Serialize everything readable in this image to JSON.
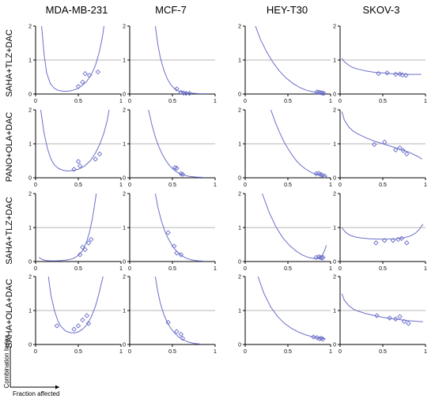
{
  "figure": {
    "columns": [
      "MDA-MB-231",
      "MCF-7",
      "HEY-T30",
      "SKOV-3"
    ],
    "rows": [
      "SAHA+TLZ+DAC",
      "PANO+OLA+DAC",
      "SAHA+TLZ+DAC",
      "SAHA+OLA+DAC"
    ],
    "axis_legend": {
      "ylabel": "Combination Index",
      "xlabel": "Fraction affected"
    }
  },
  "style": {
    "curve_color": "#6b6fc9",
    "point_color": "#6b6fc9",
    "refline_color": "#b5b5b5",
    "axis_color": "#000000"
  },
  "chart_data": [
    {
      "type": "scatter",
      "row": 0,
      "col": 0,
      "xlim": [
        0,
        1
      ],
      "ylim": [
        0,
        2
      ],
      "xticks": [
        "0",
        "0.5",
        "1"
      ],
      "yticks": [
        "0",
        "1",
        "2"
      ],
      "ref_line": 1,
      "curve": {
        "x": [
          0.07,
          0.1,
          0.13,
          0.17,
          0.21,
          0.25,
          0.3,
          0.35,
          0.4,
          0.45,
          0.5,
          0.55,
          0.6,
          0.65,
          0.7,
          0.74,
          0.77,
          0.79,
          0.8
        ],
        "y": [
          2.0,
          1.15,
          0.62,
          0.32,
          0.19,
          0.12,
          0.09,
          0.08,
          0.09,
          0.12,
          0.17,
          0.26,
          0.38,
          0.56,
          0.84,
          1.18,
          1.52,
          1.8,
          2.0
        ]
      },
      "points": [
        {
          "x": 0.5,
          "y": 0.22
        },
        {
          "x": 0.55,
          "y": 0.35
        },
        {
          "x": 0.58,
          "y": 0.6
        },
        {
          "x": 0.63,
          "y": 0.55
        },
        {
          "x": 0.73,
          "y": 0.65
        }
      ]
    },
    {
      "type": "scatter",
      "row": 0,
      "col": 1,
      "xlim": [
        0,
        1
      ],
      "ylim": [
        0,
        2
      ],
      "xticks": [
        "0",
        "0.5",
        "1"
      ],
      "yticks": [
        "0",
        "1",
        "2"
      ],
      "ref_line": 1,
      "curve": {
        "x": [
          0.3,
          0.33,
          0.36,
          0.4,
          0.44,
          0.48,
          0.52,
          0.57,
          0.62,
          0.68,
          0.75,
          0.83,
          0.9
        ],
        "y": [
          2.0,
          1.45,
          1.05,
          0.7,
          0.45,
          0.28,
          0.17,
          0.09,
          0.05,
          0.03,
          0.02,
          0.01,
          0.01
        ]
      },
      "points": [
        {
          "x": 0.55,
          "y": 0.15
        },
        {
          "x": 0.6,
          "y": 0.05
        },
        {
          "x": 0.63,
          "y": 0.03
        },
        {
          "x": 0.66,
          "y": 0.02
        },
        {
          "x": 0.7,
          "y": 0.02
        }
      ]
    },
    {
      "type": "scatter",
      "row": 0,
      "col": 2,
      "xlim": [
        0,
        1
      ],
      "ylim": [
        0,
        2
      ],
      "xticks": [
        "0",
        "0.5",
        "1"
      ],
      "yticks": [
        "0",
        "1",
        "2"
      ],
      "ref_line": 1,
      "curve": {
        "x": [
          0.12,
          0.18,
          0.25,
          0.32,
          0.4,
          0.48,
          0.56,
          0.64,
          0.72,
          0.8,
          0.87,
          0.92
        ],
        "y": [
          2.0,
          1.6,
          1.25,
          0.95,
          0.68,
          0.47,
          0.31,
          0.19,
          0.11,
          0.06,
          0.03,
          0.02
        ]
      },
      "points": [
        {
          "x": 0.84,
          "y": 0.06
        },
        {
          "x": 0.86,
          "y": 0.05
        },
        {
          "x": 0.88,
          "y": 0.04
        },
        {
          "x": 0.9,
          "y": 0.03
        },
        {
          "x": 0.92,
          "y": 0.02
        }
      ]
    },
    {
      "type": "scatter",
      "row": 0,
      "col": 3,
      "xlim": [
        0,
        1
      ],
      "ylim": [
        0,
        2
      ],
      "xticks": [
        "0",
        "0.5",
        "1"
      ],
      "yticks": [
        "0",
        "1",
        "2"
      ],
      "ref_line": 1,
      "curve": {
        "x": [
          0.02,
          0.05,
          0.1,
          0.15,
          0.2,
          0.3,
          0.4,
          0.5,
          0.6,
          0.7,
          0.8,
          0.9,
          0.95
        ],
        "y": [
          1.05,
          0.95,
          0.85,
          0.78,
          0.74,
          0.68,
          0.64,
          0.62,
          0.6,
          0.59,
          0.58,
          0.58,
          0.58
        ]
      },
      "points": [
        {
          "x": 0.45,
          "y": 0.6
        },
        {
          "x": 0.55,
          "y": 0.62
        },
        {
          "x": 0.65,
          "y": 0.58
        },
        {
          "x": 0.7,
          "y": 0.59
        },
        {
          "x": 0.73,
          "y": 0.56
        },
        {
          "x": 0.77,
          "y": 0.55
        }
      ]
    },
    {
      "type": "scatter",
      "row": 1,
      "col": 0,
      "xlim": [
        0,
        1
      ],
      "ylim": [
        0,
        2
      ],
      "xticks": [
        "0",
        "0.5",
        "1"
      ],
      "yticks": [
        "0",
        "1",
        "2"
      ],
      "ref_line": 1,
      "curve": {
        "x": [
          0.06,
          0.1,
          0.14,
          0.18,
          0.22,
          0.27,
          0.32,
          0.37,
          0.43,
          0.5,
          0.57,
          0.64,
          0.7,
          0.75,
          0.8,
          0.84,
          0.86
        ],
        "y": [
          2.0,
          1.3,
          0.85,
          0.55,
          0.38,
          0.27,
          0.22,
          0.2,
          0.21,
          0.25,
          0.34,
          0.5,
          0.72,
          0.98,
          1.32,
          1.7,
          2.0
        ]
      },
      "points": [
        {
          "x": 0.45,
          "y": 0.25
        },
        {
          "x": 0.5,
          "y": 0.48
        },
        {
          "x": 0.52,
          "y": 0.35
        },
        {
          "x": 0.7,
          "y": 0.55
        },
        {
          "x": 0.75,
          "y": 0.7
        }
      ]
    },
    {
      "type": "scatter",
      "row": 1,
      "col": 1,
      "xlim": [
        0,
        1
      ],
      "ylim": [
        0,
        2
      ],
      "xticks": [
        "0",
        "0.5",
        "1"
      ],
      "yticks": [
        "0",
        "1",
        "2"
      ],
      "ref_line": 1,
      "curve": {
        "x": [
          0.22,
          0.26,
          0.3,
          0.34,
          0.38,
          0.42,
          0.46,
          0.5,
          0.55,
          0.6,
          0.65,
          0.7,
          0.78,
          0.88
        ],
        "y": [
          2.0,
          1.55,
          1.2,
          0.92,
          0.7,
          0.52,
          0.38,
          0.27,
          0.17,
          0.11,
          0.07,
          0.04,
          0.02,
          0.01
        ]
      },
      "points": [
        {
          "x": 0.53,
          "y": 0.3
        },
        {
          "x": 0.55,
          "y": 0.28
        },
        {
          "x": 0.6,
          "y": 0.12
        },
        {
          "x": 0.62,
          "y": 0.1
        }
      ]
    },
    {
      "type": "scatter",
      "row": 1,
      "col": 2,
      "xlim": [
        0,
        1
      ],
      "ylim": [
        0,
        2
      ],
      "xticks": [
        "0",
        "0.5",
        "1"
      ],
      "yticks": [
        "0",
        "1",
        "2"
      ],
      "ref_line": 1,
      "curve": {
        "x": [
          0.3,
          0.35,
          0.4,
          0.45,
          0.5,
          0.55,
          0.6,
          0.65,
          0.7,
          0.75,
          0.8,
          0.85,
          0.9,
          0.95
        ],
        "y": [
          2.0,
          1.65,
          1.35,
          1.08,
          0.86,
          0.67,
          0.5,
          0.37,
          0.27,
          0.19,
          0.13,
          0.09,
          0.06,
          0.04
        ]
      },
      "points": [
        {
          "x": 0.83,
          "y": 0.12
        },
        {
          "x": 0.86,
          "y": 0.13
        },
        {
          "x": 0.88,
          "y": 0.1
        },
        {
          "x": 0.9,
          "y": 0.08
        },
        {
          "x": 0.93,
          "y": 0.05
        }
      ]
    },
    {
      "type": "scatter",
      "row": 1,
      "col": 3,
      "xlim": [
        0,
        1
      ],
      "ylim": [
        0,
        2
      ],
      "xticks": [
        "0",
        "0.5",
        "1"
      ],
      "yticks": [
        "0",
        "1",
        "2"
      ],
      "ref_line": 1,
      "curve": {
        "x": [
          0.02,
          0.05,
          0.1,
          0.15,
          0.2,
          0.3,
          0.4,
          0.5,
          0.6,
          0.7,
          0.8,
          0.9,
          0.96
        ],
        "y": [
          1.95,
          1.7,
          1.5,
          1.38,
          1.3,
          1.18,
          1.08,
          1.0,
          0.92,
          0.84,
          0.76,
          0.64,
          0.55
        ]
      },
      "points": [
        {
          "x": 0.4,
          "y": 0.98
        },
        {
          "x": 0.52,
          "y": 1.05
        },
        {
          "x": 0.65,
          "y": 0.82
        },
        {
          "x": 0.7,
          "y": 0.88
        },
        {
          "x": 0.74,
          "y": 0.8
        },
        {
          "x": 0.78,
          "y": 0.7
        }
      ]
    },
    {
      "type": "scatter",
      "row": 2,
      "col": 0,
      "xlim": [
        0,
        1
      ],
      "ylim": [
        0,
        2
      ],
      "xticks": [
        "0",
        "0.5",
        "1"
      ],
      "yticks": [
        "0",
        "1",
        "2"
      ],
      "ref_line": 1,
      "curve": {
        "x": [
          0.04,
          0.08,
          0.12,
          0.16,
          0.2,
          0.25,
          0.3,
          0.35,
          0.4,
          0.45,
          0.5,
          0.55,
          0.6,
          0.63,
          0.66,
          0.69,
          0.71
        ],
        "y": [
          0.12,
          0.06,
          0.03,
          0.02,
          0.02,
          0.02,
          0.03,
          0.04,
          0.06,
          0.1,
          0.18,
          0.32,
          0.6,
          0.85,
          1.2,
          1.65,
          2.0
        ]
      },
      "points": [
        {
          "x": 0.52,
          "y": 0.2
        },
        {
          "x": 0.55,
          "y": 0.42
        },
        {
          "x": 0.58,
          "y": 0.35
        },
        {
          "x": 0.62,
          "y": 0.55
        },
        {
          "x": 0.65,
          "y": 0.65
        }
      ]
    },
    {
      "type": "scatter",
      "row": 2,
      "col": 1,
      "xlim": [
        0,
        1
      ],
      "ylim": [
        0,
        2
      ],
      "xticks": [
        "0",
        "0.5",
        "1"
      ],
      "yticks": [
        "0",
        "1",
        "2"
      ],
      "ref_line": 1,
      "curve": {
        "x": [
          0.3,
          0.33,
          0.37,
          0.41,
          0.45,
          0.49,
          0.53,
          0.57,
          0.61,
          0.66,
          0.72,
          0.8,
          0.88
        ],
        "y": [
          2.0,
          1.6,
          1.2,
          0.9,
          0.68,
          0.5,
          0.36,
          0.25,
          0.17,
          0.1,
          0.05,
          0.02,
          0.01
        ]
      },
      "points": [
        {
          "x": 0.45,
          "y": 0.85
        },
        {
          "x": 0.52,
          "y": 0.45
        },
        {
          "x": 0.55,
          "y": 0.25
        },
        {
          "x": 0.6,
          "y": 0.2
        }
      ]
    },
    {
      "type": "scatter",
      "row": 2,
      "col": 2,
      "xlim": [
        0,
        1
      ],
      "ylim": [
        0,
        2
      ],
      "xticks": [
        "0",
        "0.5",
        "1"
      ],
      "yticks": [
        "0",
        "1",
        "2"
      ],
      "ref_line": 1,
      "curve": {
        "x": [
          0.2,
          0.28,
          0.36,
          0.44,
          0.52,
          0.6,
          0.67,
          0.74,
          0.8,
          0.86,
          0.9,
          0.93,
          0.95
        ],
        "y": [
          2.0,
          1.45,
          1.02,
          0.7,
          0.47,
          0.3,
          0.19,
          0.12,
          0.09,
          0.1,
          0.18,
          0.32,
          0.48
        ]
      },
      "points": [
        {
          "x": 0.83,
          "y": 0.12
        },
        {
          "x": 0.86,
          "y": 0.14
        },
        {
          "x": 0.88,
          "y": 0.12
        },
        {
          "x": 0.9,
          "y": 0.1
        },
        {
          "x": 0.91,
          "y": 0.12
        }
      ]
    },
    {
      "type": "scatter",
      "row": 2,
      "col": 3,
      "xlim": [
        0,
        1
      ],
      "ylim": [
        0,
        2
      ],
      "xticks": [
        "0",
        "0.5",
        "1"
      ],
      "yticks": [
        "0",
        "1",
        "2"
      ],
      "ref_line": 1,
      "curve": {
        "x": [
          0.02,
          0.05,
          0.08,
          0.12,
          0.18,
          0.25,
          0.35,
          0.45,
          0.55,
          0.65,
          0.75,
          0.82,
          0.88,
          0.93,
          0.97
        ],
        "y": [
          1.0,
          0.9,
          0.83,
          0.77,
          0.72,
          0.69,
          0.67,
          0.66,
          0.66,
          0.67,
          0.7,
          0.75,
          0.83,
          0.95,
          1.1
        ]
      },
      "points": [
        {
          "x": 0.42,
          "y": 0.55
        },
        {
          "x": 0.52,
          "y": 0.62
        },
        {
          "x": 0.62,
          "y": 0.62
        },
        {
          "x": 0.68,
          "y": 0.65
        },
        {
          "x": 0.72,
          "y": 0.68
        },
        {
          "x": 0.78,
          "y": 0.55
        }
      ]
    },
    {
      "type": "scatter",
      "row": 3,
      "col": 0,
      "xlim": [
        0,
        1
      ],
      "ylim": [
        0,
        2
      ],
      "xticks": [
        "0",
        "0.5",
        "1"
      ],
      "yticks": [
        "0",
        "1",
        "2"
      ],
      "ref_line": 1,
      "curve": {
        "x": [
          0.15,
          0.18,
          0.22,
          0.26,
          0.3,
          0.35,
          0.4,
          0.45,
          0.5,
          0.55,
          0.6,
          0.65,
          0.7,
          0.74,
          0.77,
          0.79
        ],
        "y": [
          2.0,
          1.45,
          1.0,
          0.7,
          0.52,
          0.4,
          0.35,
          0.34,
          0.37,
          0.45,
          0.58,
          0.8,
          1.12,
          1.48,
          1.8,
          2.0
        ]
      },
      "points": [
        {
          "x": 0.25,
          "y": 0.55
        },
        {
          "x": 0.45,
          "y": 0.45
        },
        {
          "x": 0.5,
          "y": 0.55
        },
        {
          "x": 0.55,
          "y": 0.72
        },
        {
          "x": 0.6,
          "y": 0.85
        },
        {
          "x": 0.62,
          "y": 0.62
        }
      ]
    },
    {
      "type": "scatter",
      "row": 3,
      "col": 1,
      "xlim": [
        0,
        1
      ],
      "ylim": [
        0,
        2
      ],
      "xticks": [
        "0",
        "0.5",
        "1"
      ],
      "yticks": [
        "0",
        "1",
        "2"
      ],
      "ref_line": 1,
      "curve": {
        "x": [
          0.3,
          0.33,
          0.36,
          0.4,
          0.44,
          0.48,
          0.52,
          0.56,
          0.6,
          0.65,
          0.7,
          0.76,
          0.84
        ],
        "y": [
          2.0,
          1.55,
          1.2,
          0.88,
          0.65,
          0.48,
          0.35,
          0.25,
          0.17,
          0.11,
          0.06,
          0.03,
          0.01
        ]
      },
      "points": [
        {
          "x": 0.45,
          "y": 0.65
        },
        {
          "x": 0.55,
          "y": 0.38
        },
        {
          "x": 0.6,
          "y": 0.3
        },
        {
          "x": 0.62,
          "y": 0.18
        }
      ]
    },
    {
      "type": "scatter",
      "row": 3,
      "col": 2,
      "xlim": [
        0,
        1
      ],
      "ylim": [
        0,
        2
      ],
      "xticks": [
        "0",
        "0.5",
        "1"
      ],
      "yticks": [
        "0",
        "1",
        "2"
      ],
      "ref_line": 1,
      "curve": {
        "x": [
          0.15,
          0.22,
          0.3,
          0.38,
          0.46,
          0.54,
          0.62,
          0.7,
          0.78,
          0.84,
          0.9,
          0.94
        ],
        "y": [
          2.0,
          1.5,
          1.1,
          0.82,
          0.62,
          0.48,
          0.37,
          0.29,
          0.23,
          0.2,
          0.18,
          0.17
        ]
      },
      "points": [
        {
          "x": 0.8,
          "y": 0.22
        },
        {
          "x": 0.84,
          "y": 0.2
        },
        {
          "x": 0.87,
          "y": 0.17
        },
        {
          "x": 0.89,
          "y": 0.18
        },
        {
          "x": 0.91,
          "y": 0.16
        }
      ]
    },
    {
      "type": "scatter",
      "row": 3,
      "col": 3,
      "xlim": [
        0,
        1
      ],
      "ylim": [
        0,
        2
      ],
      "xticks": [
        "0",
        "0.5",
        "1"
      ],
      "yticks": [
        "0",
        "1",
        "2"
      ],
      "ref_line": 1,
      "curve": {
        "x": [
          0.02,
          0.05,
          0.1,
          0.15,
          0.2,
          0.3,
          0.4,
          0.5,
          0.6,
          0.7,
          0.8,
          0.9,
          0.97
        ],
        "y": [
          1.5,
          1.3,
          1.15,
          1.05,
          0.99,
          0.91,
          0.85,
          0.8,
          0.76,
          0.73,
          0.7,
          0.68,
          0.67
        ]
      },
      "points": [
        {
          "x": 0.43,
          "y": 0.85
        },
        {
          "x": 0.58,
          "y": 0.78
        },
        {
          "x": 0.65,
          "y": 0.75
        },
        {
          "x": 0.7,
          "y": 0.82
        },
        {
          "x": 0.75,
          "y": 0.68
        },
        {
          "x": 0.8,
          "y": 0.62
        }
      ]
    }
  ]
}
